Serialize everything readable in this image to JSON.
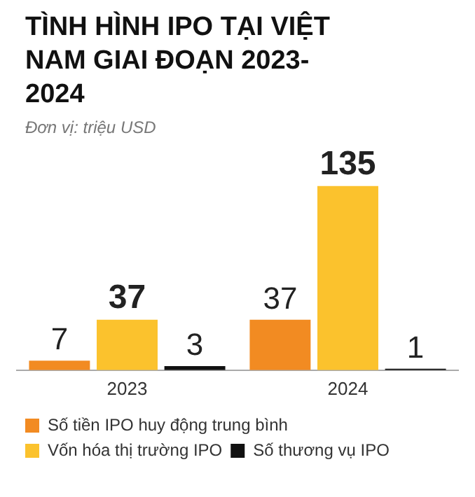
{
  "chart_data": {
    "type": "bar",
    "title": "TÌNH HÌNH IPO TẠI VIỆT NAM GIAI ĐOẠN 2023-2024",
    "subtitle": "Đơn vị: triệu USD",
    "categories": [
      "2023",
      "2024"
    ],
    "series": [
      {
        "name": "Số tiền IPO huy động trung bình",
        "color": "#f28b22",
        "values": [
          7,
          37
        ]
      },
      {
        "name": "Vốn hóa thị trường IPO",
        "color": "#fbc22d",
        "values": [
          37,
          135
        ]
      },
      {
        "name": "Số thương vụ IPO",
        "color": "#111111",
        "values": [
          3,
          1
        ]
      }
    ],
    "data_labels": true,
    "grid": false,
    "legend": "bottom"
  }
}
